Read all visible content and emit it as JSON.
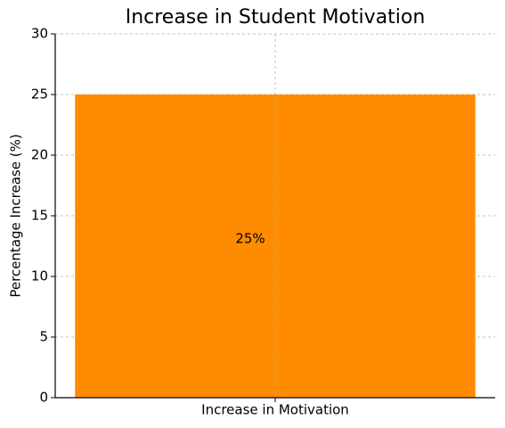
{
  "chart_data": {
    "type": "bar",
    "title": "Increase in Student Motivation",
    "y_label": "Percentage Increase (%)",
    "categories": [
      "Increase in Motivation"
    ],
    "values": [
      25
    ],
    "value_labels": [
      "25%"
    ],
    "color": "#ff8c00",
    "ylim": [
      0,
      30
    ],
    "yticks": [
      0,
      5,
      10,
      15,
      20,
      25,
      30
    ],
    "grid": true
  }
}
